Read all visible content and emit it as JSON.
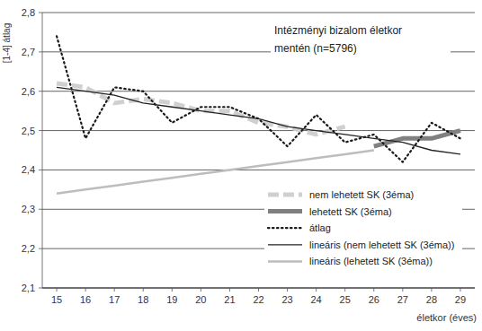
{
  "chart_data": {
    "type": "line",
    "y_label": "[1-4] átlag",
    "x_label": "életkor (éves)",
    "annotation": [
      "Intézményi bizalom életkor",
      "mentén (n=5796)"
    ],
    "x": [
      15,
      16,
      17,
      18,
      19,
      20,
      21,
      22,
      23,
      24,
      25,
      26,
      27,
      28,
      29
    ],
    "xlim": [
      14.5,
      29.5
    ],
    "xticks": [
      15,
      16,
      17,
      18,
      19,
      20,
      21,
      22,
      23,
      24,
      25,
      26,
      27,
      28,
      29
    ],
    "ylim": [
      2.1,
      2.8
    ],
    "yticks": [
      {
        "value": 2.1,
        "label": "2,1"
      },
      {
        "value": 2.2,
        "label": "2,2"
      },
      {
        "value": 2.3,
        "label": "2,3"
      },
      {
        "value": 2.4,
        "label": "2,4"
      },
      {
        "value": 2.5,
        "label": "2,5"
      },
      {
        "value": 2.6,
        "label": "2,6"
      },
      {
        "value": 2.7,
        "label": "2,7"
      },
      {
        "value": 2.8,
        "label": "2,8"
      }
    ],
    "grid": true,
    "legend": "bottom",
    "series": [
      {
        "name": "nem lehetett SK (3éma)",
        "color": "#d0d0d0",
        "line_style": "dashed",
        "values": [
          2.62,
          2.61,
          2.57,
          2.58,
          2.57,
          2.55,
          2.55,
          2.52,
          2.51,
          2.49,
          2.51,
          null,
          null,
          null,
          null
        ]
      },
      {
        "name": "lehetett SK (3éma)",
        "color": "#808080",
        "line_style": "solid",
        "values": [
          null,
          null,
          null,
          null,
          null,
          null,
          null,
          null,
          null,
          null,
          null,
          2.46,
          2.48,
          2.48,
          2.5
        ]
      },
      {
        "name": "átlag",
        "color": "#1a1a1a",
        "line_style": "dotted",
        "values": [
          2.74,
          2.48,
          2.61,
          2.6,
          2.52,
          2.56,
          2.56,
          2.53,
          2.46,
          2.54,
          2.47,
          2.49,
          2.42,
          2.52,
          2.48
        ]
      },
      {
        "name": "lineáris (nem lehetett SK (3éma))",
        "color": "#222222",
        "line_style": "solid",
        "values": [
          2.61,
          2.6,
          2.59,
          2.57,
          2.56,
          2.55,
          2.54,
          2.53,
          2.51,
          2.5,
          2.49,
          2.48,
          2.47,
          2.45,
          2.44
        ]
      },
      {
        "name": "lineáris (lehetett SK (3éma))",
        "color": "#bdbdbd",
        "line_style": "solid",
        "values": [
          2.34,
          2.35,
          2.36,
          2.37,
          2.38,
          2.39,
          2.4,
          2.41,
          2.42,
          2.43,
          2.44,
          2.45,
          null,
          null,
          null
        ]
      }
    ]
  }
}
